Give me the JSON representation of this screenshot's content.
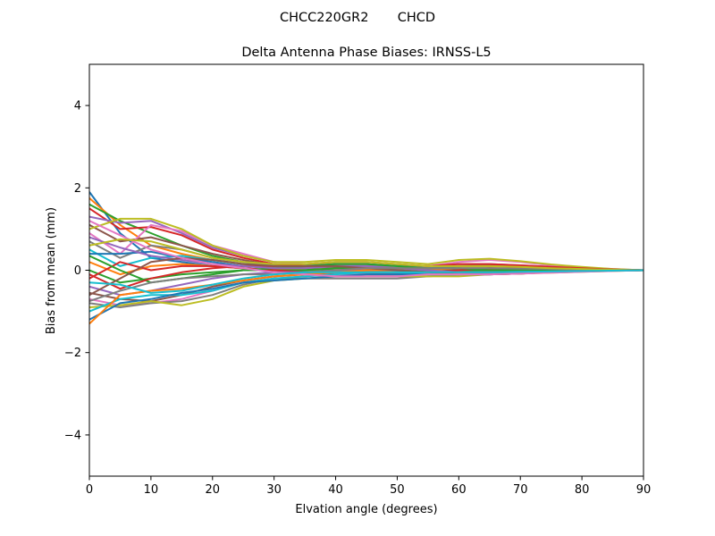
{
  "figure": {
    "suptitle": "CHCC220GR2       CHCD"
  },
  "chart_data": {
    "type": "line",
    "title": "Delta Antenna Phase Biases: IRNSS-L5",
    "xlabel": "Elvation angle (degrees)",
    "ylabel": "Bias from mean (mm)",
    "xlim": [
      0,
      90
    ],
    "ylim": [
      -5,
      5
    ],
    "xticks": [
      0,
      10,
      20,
      30,
      40,
      50,
      60,
      70,
      80,
      90
    ],
    "yticks": [
      -4,
      -2,
      0,
      2,
      4
    ],
    "xtick_labels": [
      "0",
      "10",
      "20",
      "30",
      "40",
      "50",
      "60",
      "70",
      "80",
      "90"
    ],
    "ytick_labels": [
      "−4",
      "−2",
      "0",
      "2",
      "4"
    ],
    "grid": false,
    "legend": false,
    "x": [
      0,
      5,
      10,
      15,
      20,
      25,
      30,
      35,
      40,
      45,
      50,
      55,
      60,
      65,
      70,
      75,
      80,
      85,
      90
    ],
    "colors": [
      "#1f77b4",
      "#ff7f0e",
      "#2ca02c",
      "#d62728",
      "#9467bd",
      "#8c564b",
      "#e377c2",
      "#7f7f7f",
      "#bcbd22",
      "#17becf"
    ],
    "series": [
      {
        "values": [
          1.9,
          0.9,
          0.3,
          0.2,
          0.1,
          0.05,
          0.0,
          -0.05,
          -0.1,
          -0.1,
          -0.1,
          -0.1,
          -0.05,
          -0.05,
          -0.05,
          -0.03,
          -0.02,
          -0.01,
          0.0
        ]
      },
      {
        "values": [
          1.75,
          1.1,
          0.6,
          0.4,
          0.25,
          0.15,
          0.05,
          0.0,
          -0.05,
          -0.05,
          -0.05,
          -0.05,
          0.0,
          0.0,
          -0.02,
          -0.02,
          -0.02,
          -0.01,
          0.0
        ]
      },
      {
        "values": [
          1.6,
          1.2,
          0.9,
          0.6,
          0.35,
          0.2,
          0.1,
          0.05,
          0.0,
          0.0,
          0.0,
          0.0,
          0.05,
          0.05,
          0.03,
          0.02,
          0.01,
          0.0,
          0.0
        ]
      },
      {
        "values": [
          1.5,
          1.0,
          1.05,
          0.85,
          0.5,
          0.3,
          0.15,
          0.1,
          0.05,
          0.05,
          0.05,
          0.05,
          0.1,
          0.1,
          0.08,
          0.05,
          0.03,
          0.01,
          0.0
        ]
      },
      {
        "values": [
          1.3,
          1.15,
          1.2,
          0.9,
          0.55,
          0.35,
          0.2,
          0.15,
          0.1,
          0.1,
          0.1,
          0.1,
          0.15,
          0.15,
          0.12,
          0.08,
          0.05,
          0.02,
          0.0
        ]
      },
      {
        "values": [
          1.1,
          0.7,
          0.8,
          0.6,
          0.4,
          0.25,
          0.12,
          0.08,
          0.06,
          0.05,
          0.05,
          0.05,
          0.1,
          0.12,
          0.1,
          0.06,
          0.04,
          0.02,
          0.0
        ]
      },
      {
        "values": [
          0.9,
          0.4,
          1.1,
          0.95,
          0.6,
          0.4,
          0.2,
          0.15,
          0.15,
          0.15,
          0.1,
          0.1,
          0.2,
          0.25,
          0.2,
          0.12,
          0.07,
          0.03,
          0.0
        ]
      },
      {
        "values": [
          0.7,
          0.3,
          0.6,
          0.5,
          0.3,
          0.2,
          0.1,
          0.1,
          0.15,
          0.15,
          0.1,
          0.05,
          0.1,
          0.1,
          0.08,
          0.05,
          0.03,
          0.01,
          0.0
        ]
      },
      {
        "values": [
          1.0,
          1.25,
          1.25,
          1.0,
          0.6,
          0.35,
          0.2,
          0.2,
          0.25,
          0.25,
          0.2,
          0.15,
          0.25,
          0.28,
          0.22,
          0.14,
          0.08,
          0.03,
          0.0
        ]
      },
      {
        "values": [
          0.5,
          0.1,
          0.3,
          0.35,
          0.25,
          0.15,
          0.1,
          0.1,
          0.15,
          0.15,
          0.1,
          0.05,
          0.05,
          0.05,
          0.04,
          0.03,
          0.02,
          0.01,
          0.0
        ]
      },
      {
        "values": [
          0.4,
          0.4,
          0.45,
          0.3,
          0.2,
          0.1,
          0.05,
          0.05,
          0.1,
          0.1,
          0.05,
          0.0,
          0.0,
          0.0,
          0.0,
          0.0,
          0.0,
          0.0,
          0.0
        ]
      },
      {
        "values": [
          0.2,
          -0.1,
          0.1,
          0.15,
          0.1,
          0.05,
          0.0,
          0.05,
          0.1,
          0.1,
          0.05,
          0.0,
          0.05,
          0.05,
          0.04,
          0.03,
          0.02,
          0.01,
          0.0
        ]
      },
      {
        "values": [
          0.0,
          -0.3,
          -0.2,
          -0.1,
          -0.05,
          0.0,
          0.0,
          0.0,
          0.05,
          0.05,
          0.0,
          -0.05,
          0.0,
          0.0,
          0.0,
          0.0,
          0.0,
          0.0,
          0.0
        ]
      },
      {
        "values": [
          -0.2,
          0.2,
          0.0,
          0.1,
          0.1,
          0.05,
          0.0,
          -0.05,
          -0.05,
          -0.05,
          -0.05,
          -0.05,
          0.0,
          0.05,
          0.04,
          0.03,
          0.02,
          0.01,
          0.0
        ]
      },
      {
        "values": [
          -0.4,
          -0.6,
          -0.5,
          -0.35,
          -0.2,
          -0.1,
          -0.05,
          -0.05,
          0.0,
          0.0,
          -0.05,
          -0.1,
          -0.05,
          -0.05,
          -0.04,
          -0.03,
          -0.02,
          -0.01,
          0.0
        ]
      },
      {
        "values": [
          -0.55,
          -0.7,
          -0.75,
          -0.6,
          -0.4,
          -0.25,
          -0.15,
          -0.1,
          -0.1,
          -0.1,
          -0.1,
          -0.1,
          -0.1,
          -0.1,
          -0.08,
          -0.05,
          -0.03,
          -0.01,
          0.0
        ]
      },
      {
        "values": [
          -0.7,
          -0.85,
          -0.8,
          -0.7,
          -0.5,
          -0.3,
          -0.2,
          -0.15,
          -0.1,
          -0.1,
          -0.15,
          -0.15,
          -0.1,
          -0.05,
          -0.05,
          -0.04,
          -0.03,
          -0.01,
          0.0
        ]
      },
      {
        "values": [
          -0.8,
          -0.9,
          -0.8,
          -0.75,
          -0.6,
          -0.35,
          -0.2,
          -0.2,
          -0.2,
          -0.2,
          -0.2,
          -0.15,
          -0.1,
          -0.1,
          -0.08,
          -0.05,
          -0.03,
          -0.01,
          0.0
        ]
      },
      {
        "values": [
          -0.9,
          -0.85,
          -0.75,
          -0.85,
          -0.7,
          -0.4,
          -0.25,
          -0.2,
          -0.15,
          -0.15,
          -0.15,
          -0.15,
          -0.15,
          -0.1,
          -0.08,
          -0.06,
          -0.04,
          -0.02,
          0.0
        ]
      },
      {
        "values": [
          -1.0,
          -0.7,
          -0.6,
          -0.6,
          -0.5,
          -0.3,
          -0.2,
          -0.15,
          -0.1,
          -0.05,
          -0.05,
          -0.1,
          -0.1,
          -0.1,
          -0.07,
          -0.05,
          -0.03,
          -0.01,
          0.0
        ]
      },
      {
        "values": [
          -1.2,
          -0.8,
          -0.7,
          -0.55,
          -0.45,
          -0.3,
          -0.25,
          -0.2,
          -0.15,
          -0.1,
          -0.1,
          -0.1,
          -0.1,
          -0.05,
          -0.05,
          -0.04,
          -0.03,
          -0.01,
          0.0
        ]
      },
      {
        "values": [
          -1.3,
          -0.6,
          -0.5,
          -0.45,
          -0.35,
          -0.25,
          -0.15,
          -0.1,
          -0.05,
          0.0,
          0.0,
          -0.05,
          -0.05,
          -0.05,
          -0.04,
          -0.03,
          -0.02,
          -0.01,
          0.0
        ]
      },
      {
        "values": [
          0.35,
          0.0,
          -0.3,
          -0.2,
          -0.1,
          0.0,
          0.05,
          0.1,
          0.15,
          0.15,
          0.1,
          0.05,
          0.05,
          0.0,
          0.0,
          0.0,
          0.0,
          0.0,
          0.0
        ]
      },
      {
        "values": [
          -0.1,
          -0.45,
          -0.2,
          -0.05,
          0.05,
          0.1,
          0.1,
          0.15,
          0.2,
          0.2,
          0.15,
          0.1,
          0.15,
          0.15,
          0.12,
          0.08,
          0.05,
          0.02,
          0.0
        ]
      },
      {
        "values": [
          0.8,
          0.55,
          0.35,
          0.25,
          0.15,
          0.1,
          0.05,
          0.05,
          0.1,
          0.1,
          0.05,
          0.0,
          -0.05,
          -0.05,
          -0.04,
          -0.03,
          -0.02,
          -0.01,
          0.0
        ]
      },
      {
        "values": [
          -0.6,
          -0.2,
          0.2,
          0.3,
          0.25,
          0.15,
          0.1,
          0.1,
          0.1,
          0.05,
          0.0,
          -0.05,
          -0.1,
          -0.1,
          -0.08,
          -0.05,
          -0.03,
          -0.01,
          0.0
        ]
      },
      {
        "values": [
          1.2,
          0.85,
          0.5,
          0.3,
          0.15,
          0.05,
          -0.05,
          -0.1,
          -0.15,
          -0.15,
          -0.15,
          -0.1,
          -0.1,
          -0.1,
          -0.08,
          -0.06,
          -0.04,
          -0.02,
          0.0
        ]
      },
      {
        "values": [
          -0.75,
          -0.5,
          -0.3,
          -0.2,
          -0.15,
          -0.1,
          -0.1,
          -0.05,
          0.0,
          0.05,
          0.05,
          0.05,
          0.05,
          0.05,
          0.04,
          0.03,
          0.02,
          0.01,
          0.0
        ]
      },
      {
        "values": [
          0.6,
          0.75,
          0.7,
          0.5,
          0.3,
          0.2,
          0.15,
          0.15,
          0.2,
          0.2,
          0.15,
          0.1,
          0.1,
          0.1,
          0.08,
          0.05,
          0.03,
          0.01,
          0.0
        ]
      },
      {
        "values": [
          -0.3,
          -0.35,
          -0.55,
          -0.5,
          -0.35,
          -0.2,
          -0.1,
          -0.05,
          -0.05,
          -0.05,
          -0.05,
          -0.05,
          -0.05,
          -0.05,
          -0.04,
          -0.03,
          -0.02,
          -0.01,
          0.0
        ]
      }
    ]
  }
}
